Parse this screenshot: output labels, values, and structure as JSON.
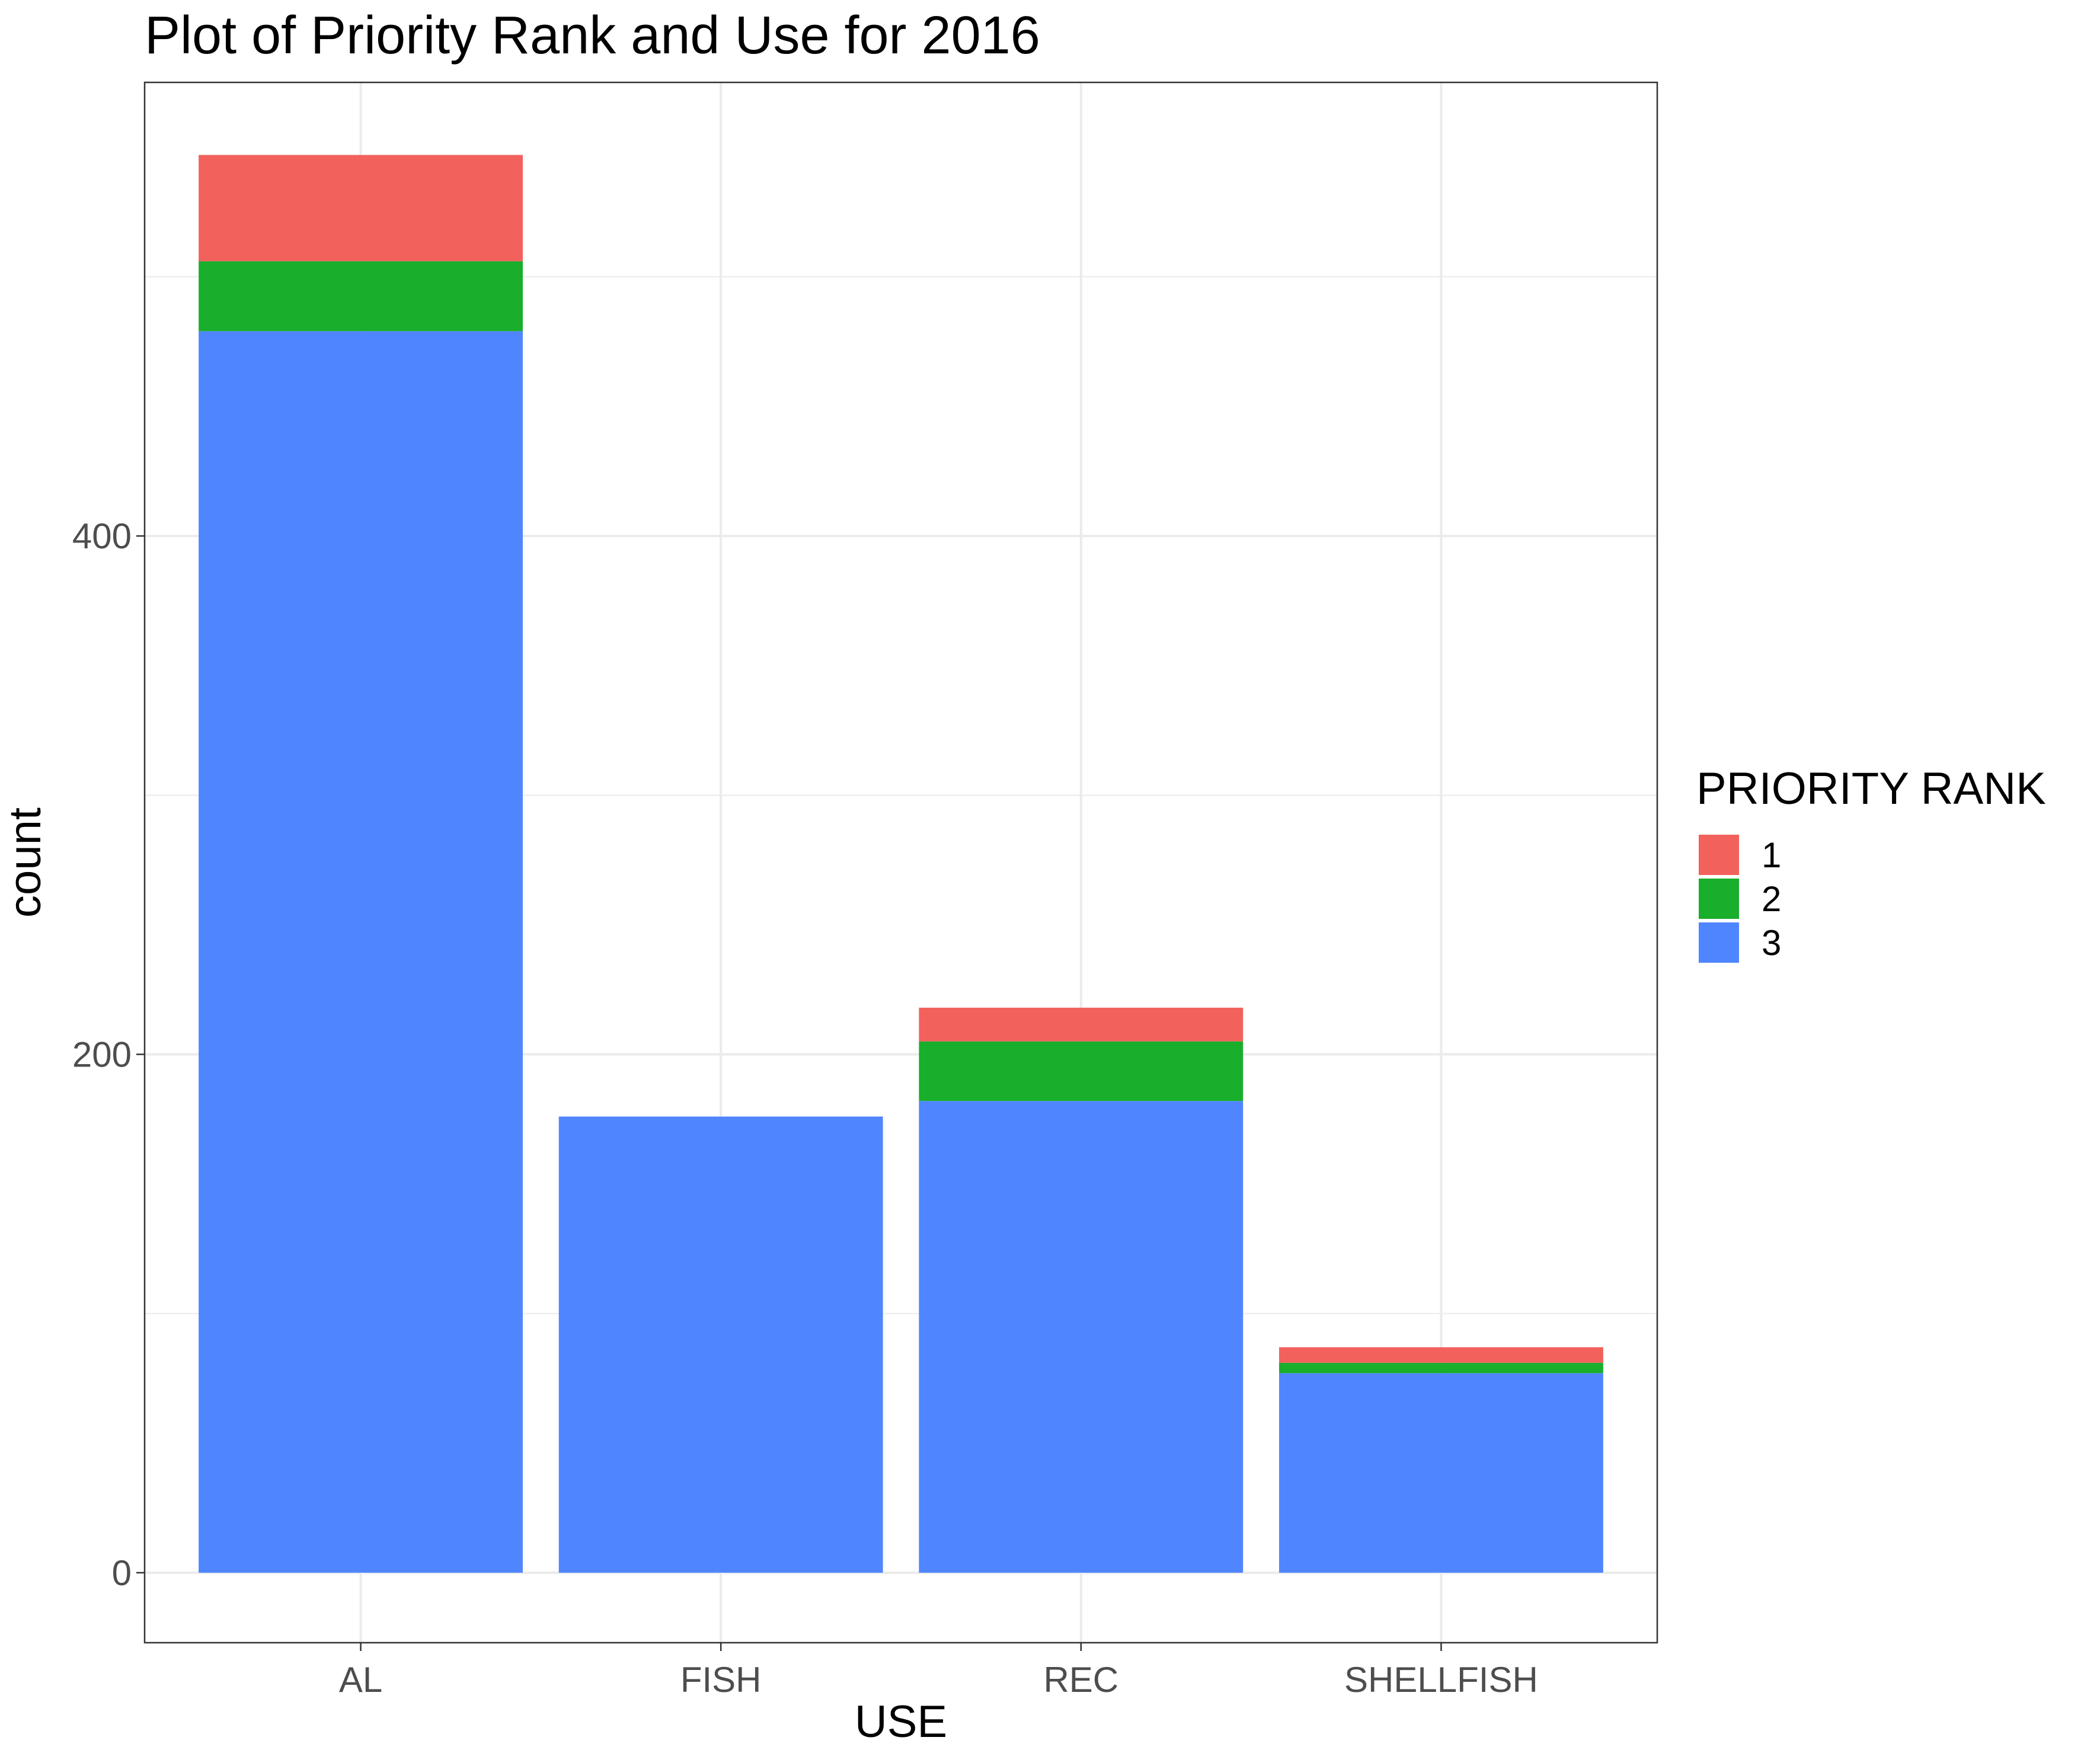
{
  "chart_data": {
    "type": "bar",
    "stacked": true,
    "title": "Plot of Priority Rank and Use for 2016",
    "xlabel": "USE",
    "ylabel": "count",
    "categories": [
      "AL",
      "FISH",
      "REC",
      "SHELLFISH"
    ],
    "y_ticks": [
      0,
      200,
      400
    ],
    "ylim": [
      -27,
      575
    ],
    "grid": true,
    "legend": {
      "title": "PRIORITY RANK",
      "position": "right"
    },
    "series": [
      {
        "name": "3",
        "color": "#4f86ff",
        "values": [
          479,
          176,
          182,
          77
        ]
      },
      {
        "name": "2",
        "color": "#19ae2c",
        "values": [
          27,
          0,
          23,
          4
        ]
      },
      {
        "name": "1",
        "color": "#f2615c",
        "values": [
          41,
          0,
          13,
          6
        ]
      }
    ]
  }
}
